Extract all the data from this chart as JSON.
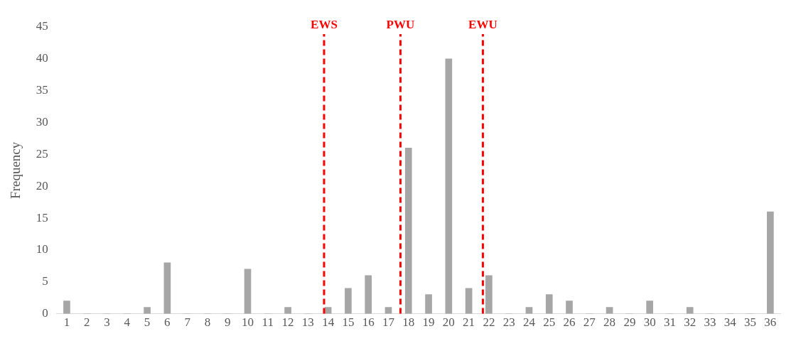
{
  "chart_data": {
    "type": "bar",
    "ylabel": "Frequency",
    "x": [
      1,
      2,
      3,
      4,
      5,
      6,
      7,
      8,
      9,
      10,
      11,
      12,
      13,
      14,
      15,
      16,
      17,
      18,
      19,
      20,
      21,
      22,
      23,
      24,
      25,
      26,
      27,
      28,
      29,
      30,
      31,
      32,
      33,
      34,
      35,
      36
    ],
    "values": [
      2,
      0,
      0,
      0,
      1,
      8,
      0,
      0,
      0,
      7,
      0,
      1,
      0,
      1,
      4,
      6,
      1,
      26,
      3,
      40,
      4,
      6,
      0,
      1,
      3,
      2,
      0,
      1,
      0,
      2,
      0,
      1,
      0,
      0,
      0,
      16
    ],
    "color": "#a6a6a6",
    "xlim": [
      0.5,
      36.5
    ],
    "xticks": [
      1,
      2,
      3,
      4,
      5,
      6,
      7,
      8,
      9,
      10,
      11,
      12,
      13,
      14,
      15,
      16,
      17,
      18,
      19,
      20,
      21,
      22,
      23,
      24,
      25,
      26,
      27,
      28,
      29,
      30,
      31,
      32,
      33,
      34,
      35,
      36
    ],
    "ylim": [
      0,
      45
    ],
    "yticks": [
      0,
      5,
      10,
      15,
      20,
      25,
      30,
      35,
      40,
      45
    ],
    "ref_lines": [
      {
        "axis": "x",
        "value": 13.8,
        "label": "EWS",
        "color": "#ff0000",
        "line_style": "dashed"
      },
      {
        "axis": "x",
        "value": 17.6,
        "label": "PWU",
        "color": "#ff0000",
        "line_style": "dashed"
      },
      {
        "axis": "x",
        "value": 21.7,
        "label": "EWU",
        "color": "#ff0000",
        "line_style": "dashed"
      }
    ],
    "grid": false,
    "legend": false
  }
}
